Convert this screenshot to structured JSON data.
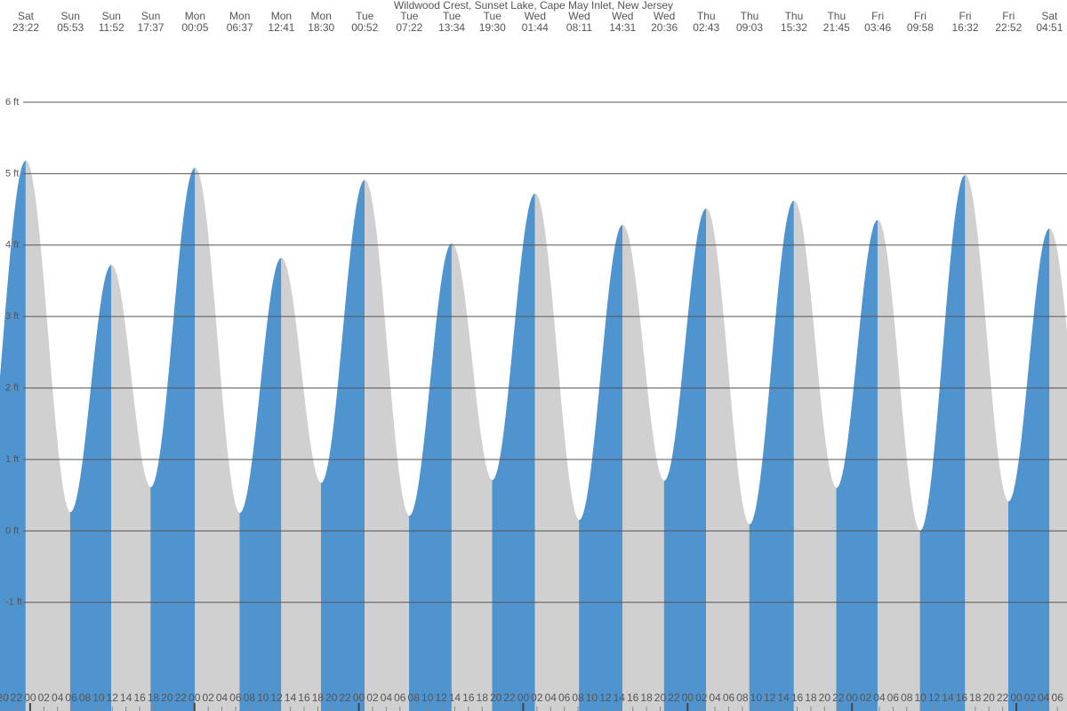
{
  "chart_data": {
    "type": "tide",
    "title": "Wildwood Crest, Sunset Lake, Cape May Inlet, New Jersey",
    "rising_color": "#4f93cf",
    "falling_color": "#d0d0d0",
    "grid": true,
    "tides": [
      {
        "day": "Sat",
        "time": "23:22",
        "height": 5.18
      },
      {
        "day": "Sun",
        "time": "05:53",
        "height": 0.26
      },
      {
        "day": "Sun",
        "time": "11:52",
        "height": 3.72
      },
      {
        "day": "Sun",
        "time": "17:37",
        "height": 0.61
      },
      {
        "day": "Mon",
        "time": "00:05",
        "height": 5.08
      },
      {
        "day": "Mon",
        "time": "06:37",
        "height": 0.25
      },
      {
        "day": "Mon",
        "time": "12:41",
        "height": 3.82
      },
      {
        "day": "Mon",
        "time": "18:30",
        "height": 0.67
      },
      {
        "day": "Tue",
        "time": "00:52",
        "height": 4.91
      },
      {
        "day": "Tue",
        "time": "07:22",
        "height": 0.21
      },
      {
        "day": "Tue",
        "time": "13:34",
        "height": 4.02
      },
      {
        "day": "Tue",
        "time": "19:30",
        "height": 0.71
      },
      {
        "day": "Wed",
        "time": "01:44",
        "height": 4.72
      },
      {
        "day": "Wed",
        "time": "08:11",
        "height": 0.15
      },
      {
        "day": "Wed",
        "time": "14:31",
        "height": 4.28
      },
      {
        "day": "Wed",
        "time": "20:36",
        "height": 0.7
      },
      {
        "day": "Thu",
        "time": "02:43",
        "height": 4.51
      },
      {
        "day": "Thu",
        "time": "09:03",
        "height": 0.09
      },
      {
        "day": "Thu",
        "time": "15:32",
        "height": 4.62
      },
      {
        "day": "Thu",
        "time": "21:45",
        "height": 0.6
      },
      {
        "day": "Fri",
        "time": "03:46",
        "height": 4.35
      },
      {
        "day": "Fri",
        "time": "09:58",
        "height": 0.0
      },
      {
        "day": "Fri",
        "time": "16:32",
        "height": 4.98
      },
      {
        "day": "Fri",
        "time": "22:52",
        "height": 0.41
      },
      {
        "day": "Sat",
        "time": "04:51",
        "height": 4.23
      }
    ],
    "xlim": [
      19.6,
      175.4
    ],
    "xticks": [
      20,
      22,
      {
        "value": 24,
        "label": "00"
      },
      {
        "value": 26,
        "label": "02"
      },
      {
        "value": 28,
        "label": "04"
      },
      {
        "value": 30,
        "label": "06"
      },
      {
        "value": 32,
        "label": "08"
      },
      {
        "value": 34,
        "label": "10"
      },
      {
        "value": 36,
        "label": "12"
      },
      {
        "value": 38,
        "label": "14"
      },
      {
        "value": 40,
        "label": "16"
      },
      {
        "value": 42,
        "label": "18"
      },
      {
        "value": 44,
        "label": "20"
      },
      {
        "value": 46,
        "label": "22"
      },
      {
        "value": 48,
        "label": "00"
      },
      {
        "value": 50,
        "label": "02"
      },
      {
        "value": 52,
        "label": "04"
      },
      {
        "value": 54,
        "label": "06"
      },
      {
        "value": 56,
        "label": "08"
      },
      {
        "value": 58,
        "label": "10"
      },
      {
        "value": 60,
        "label": "12"
      },
      {
        "value": 62,
        "label": "14"
      },
      {
        "value": 64,
        "label": "16"
      },
      {
        "value": 66,
        "label": "18"
      },
      {
        "value": 68,
        "label": "20"
      },
      {
        "value": 70,
        "label": "22"
      },
      {
        "value": 72,
        "label": "00"
      },
      {
        "value": 74,
        "label": "02"
      },
      {
        "value": 76,
        "label": "04"
      },
      {
        "value": 78,
        "label": "06"
      },
      {
        "value": 80,
        "label": "08"
      },
      {
        "value": 82,
        "label": "10"
      },
      {
        "value": 84,
        "label": "12"
      },
      {
        "value": 86,
        "label": "14"
      },
      {
        "value": 88,
        "label": "16"
      },
      {
        "value": 90,
        "label": "18"
      },
      {
        "value": 92,
        "label": "20"
      },
      {
        "value": 94,
        "label": "22"
      },
      {
        "value": 96,
        "label": "00"
      },
      {
        "value": 98,
        "label": "02"
      },
      {
        "value": 100,
        "label": "04"
      },
      {
        "value": 102,
        "label": "06"
      },
      {
        "value": 104,
        "label": "08"
      },
      {
        "value": 106,
        "label": "10"
      },
      {
        "value": 108,
        "label": "12"
      },
      {
        "value": 110,
        "label": "14"
      },
      {
        "value": 112,
        "label": "16"
      },
      {
        "value": 114,
        "label": "18"
      },
      {
        "value": 116,
        "label": "20"
      },
      {
        "value": 118,
        "label": "22"
      },
      {
        "value": 120,
        "label": "00"
      },
      {
        "value": 122,
        "label": "02"
      },
      {
        "value": 124,
        "label": "04"
      },
      {
        "value": 126,
        "label": "06"
      },
      {
        "value": 128,
        "label": "08"
      },
      {
        "value": 130,
        "label": "10"
      },
      {
        "value": 132,
        "label": "12"
      },
      {
        "value": 134,
        "label": "14"
      },
      {
        "value": 136,
        "label": "16"
      },
      {
        "value": 138,
        "label": "18"
      },
      {
        "value": 140,
        "label": "20"
      },
      {
        "value": 142,
        "label": "22"
      },
      {
        "value": 144,
        "label": "00"
      },
      {
        "value": 146,
        "label": "02"
      },
      {
        "value": 148,
        "label": "04"
      },
      {
        "value": 150,
        "label": "06"
      },
      {
        "value": 152,
        "label": "08"
      },
      {
        "value": 154,
        "label": "10"
      },
      {
        "value": 156,
        "label": "12"
      },
      {
        "value": 158,
        "label": "14"
      },
      {
        "value": 160,
        "label": "16"
      },
      {
        "value": 162,
        "label": "18"
      },
      {
        "value": 164,
        "label": "20"
      },
      {
        "value": 166,
        "label": "22"
      },
      {
        "value": 168,
        "label": "00"
      },
      {
        "value": 170,
        "label": "02"
      },
      {
        "value": 172,
        "label": "04"
      },
      {
        "value": 174,
        "label": "06"
      }
    ],
    "ylim": [
      -2.52,
      7.43
    ],
    "yticks": [
      {
        "value": 6,
        "label": "6 ft"
      },
      {
        "value": 5,
        "label": "5 ft"
      },
      {
        "value": 4,
        "label": "4 ft"
      },
      {
        "value": 3,
        "label": "3 ft"
      },
      {
        "value": 2,
        "label": "2 ft"
      },
      {
        "value": 1,
        "label": "1 ft"
      },
      {
        "value": 0,
        "label": "0 ft"
      },
      {
        "value": -1,
        "label": "-1 ft"
      }
    ]
  }
}
